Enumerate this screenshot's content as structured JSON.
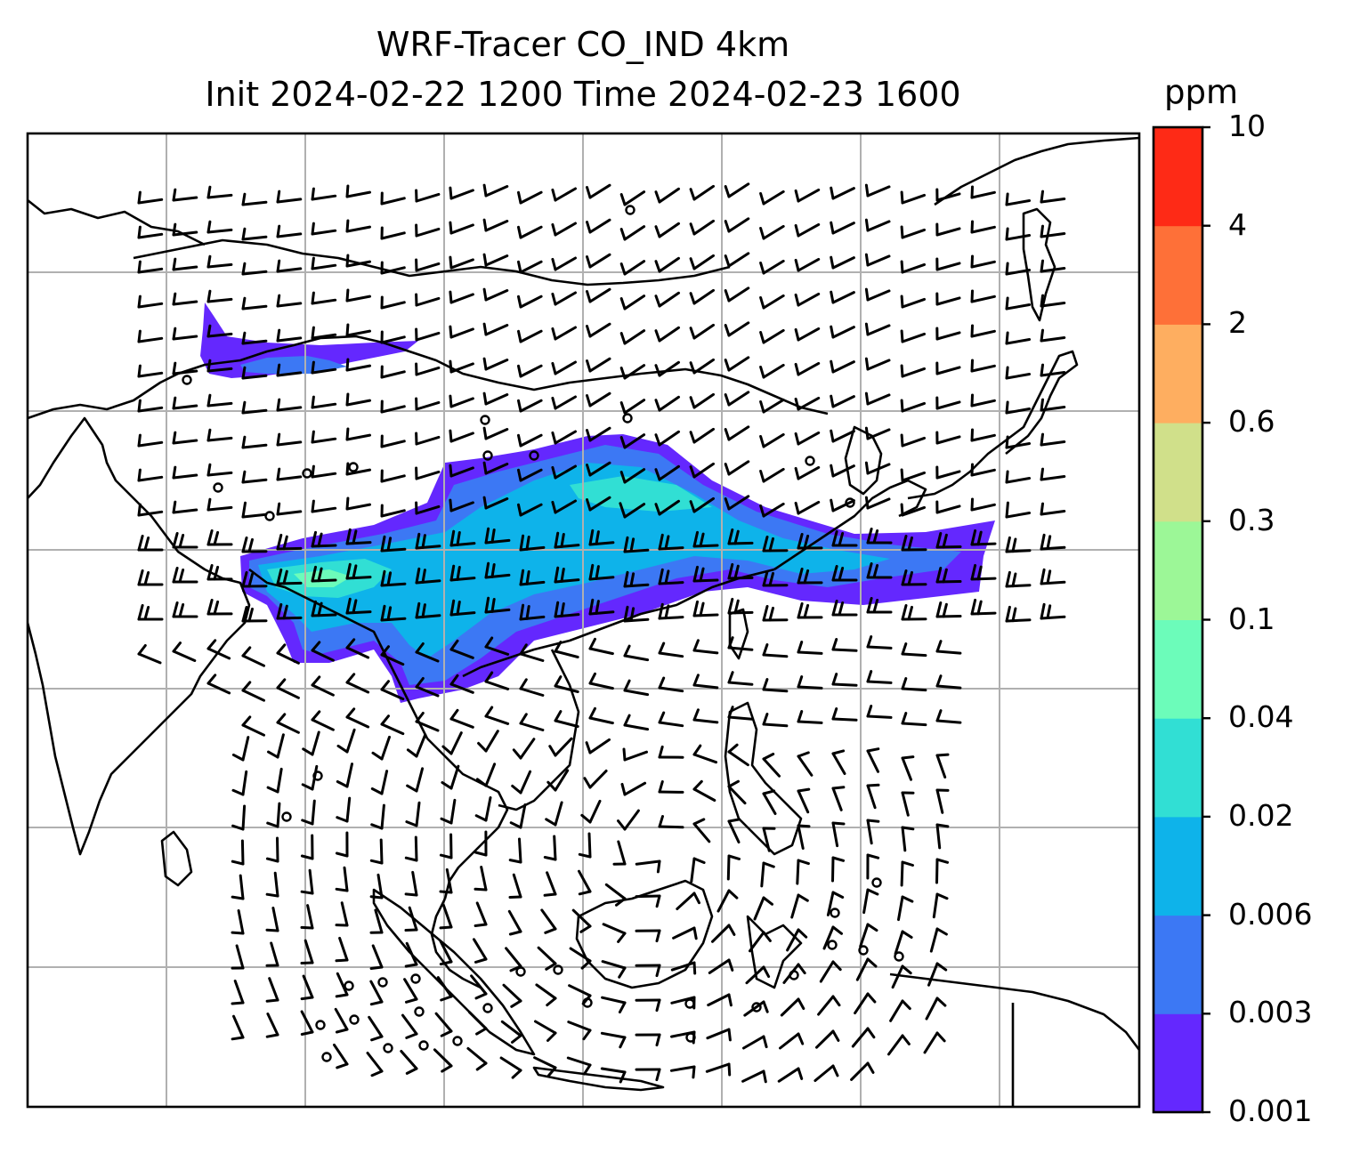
{
  "title_line1": "WRF-Tracer CO_IND 4km",
  "title_line2": "Init 2024-02-22 1200 Time 2024-02-23 1600",
  "colorbar": {
    "unit": "ppm",
    "levels": [
      "0.001",
      "0.003",
      "0.006",
      "0.02",
      "0.04",
      "0.1",
      "0.3",
      "0.6",
      "2",
      "4",
      "10"
    ],
    "colors": [
      "#6428fe",
      "#3c78f4",
      "#0eb3ea",
      "#31dfd4",
      "#6cfcba",
      "#9cf797",
      "#d0e08a",
      "#feae60",
      "#fe7038",
      "#fe2a16"
    ]
  },
  "map": {
    "coastline_color": "#000000",
    "gridline_color": "#b0b0b0",
    "barb_color": "#000000"
  }
}
